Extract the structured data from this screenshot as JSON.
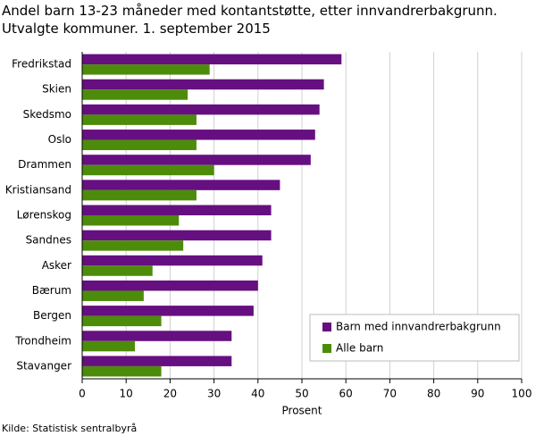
{
  "chart_data": {
    "type": "hbar",
    "title": "Andel barn 13-23 måneder med kontantstøtte, etter innvandrerbakgrunn. Utvalgte kommuner. 1. september 2015",
    "categories": [
      "Fredrikstad",
      "Skien",
      "Skedsmo",
      "Oslo",
      "Drammen",
      "Kristiansand",
      "Lørenskog",
      "Sandnes",
      "Asker",
      "Bærum",
      "Bergen",
      "Trondheim",
      "Stavanger"
    ],
    "series": [
      {
        "name": "Barn med innvandrerbakgrunn",
        "color": "#660f80",
        "values": [
          59,
          55,
          54,
          53,
          52,
          45,
          43,
          43,
          41,
          40,
          39,
          34,
          34
        ]
      },
      {
        "name": "Alle barn",
        "color": "#4c8c0a",
        "values": [
          29,
          24,
          26,
          26,
          30,
          26,
          22,
          23,
          16,
          14,
          18,
          12,
          18
        ]
      }
    ],
    "xlabel": "Prosent",
    "xlim": [
      0,
      100
    ],
    "xticks": [
      0,
      10,
      20,
      30,
      40,
      50,
      60,
      70,
      80,
      90,
      100
    ],
    "grid": true,
    "legend": "lower right",
    "source": "Kilde: Statistisk sentralbyrå"
  }
}
